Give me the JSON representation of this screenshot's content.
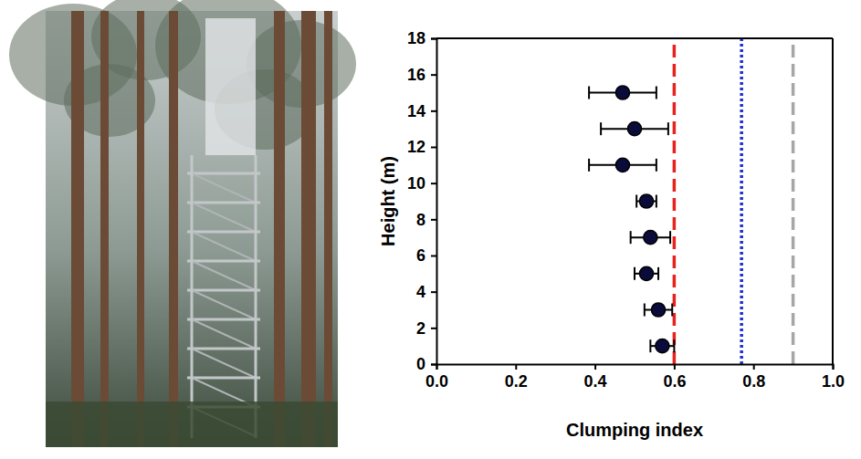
{
  "chart_data": {
    "type": "scatter",
    "xlabel": "Clumping index",
    "ylabel": "Height (m)",
    "xlim": [
      0,
      1
    ],
    "xticks": [
      {
        "value": 0,
        "label": "0.0"
      },
      0.2,
      0.4,
      0.6,
      0.8,
      {
        "value": 1,
        "label": "1.0"
      }
    ],
    "ylim": [
      0,
      18
    ],
    "yticks": [
      0,
      2,
      4,
      6,
      8,
      10,
      12,
      14,
      16,
      18
    ],
    "grid": false,
    "series": [
      {
        "type": "scatter",
        "color": "#0b0b3b",
        "marker": "circle",
        "x": [
          0.57,
          0.56,
          0.53,
          0.54,
          0.53,
          0.47,
          0.5,
          0.47
        ],
        "x_errors": [
          0.03,
          0.035,
          0.03,
          0.05,
          0.025,
          0.085,
          0.085,
          0.085
        ],
        "y": [
          1,
          3,
          5,
          7,
          9,
          11,
          13,
          15
        ]
      },
      {
        "type": "vline",
        "color": "#e8231f",
        "line_style": "dashed",
        "x": [
          0.6
        ]
      },
      {
        "type": "vline",
        "color": "#1f2fd0",
        "line_style": "dotted",
        "x": [
          0.77
        ]
      },
      {
        "type": "vline",
        "color": "#a6a6a6",
        "line_style": "dashed",
        "x": [
          0.9
        ]
      }
    ]
  }
}
